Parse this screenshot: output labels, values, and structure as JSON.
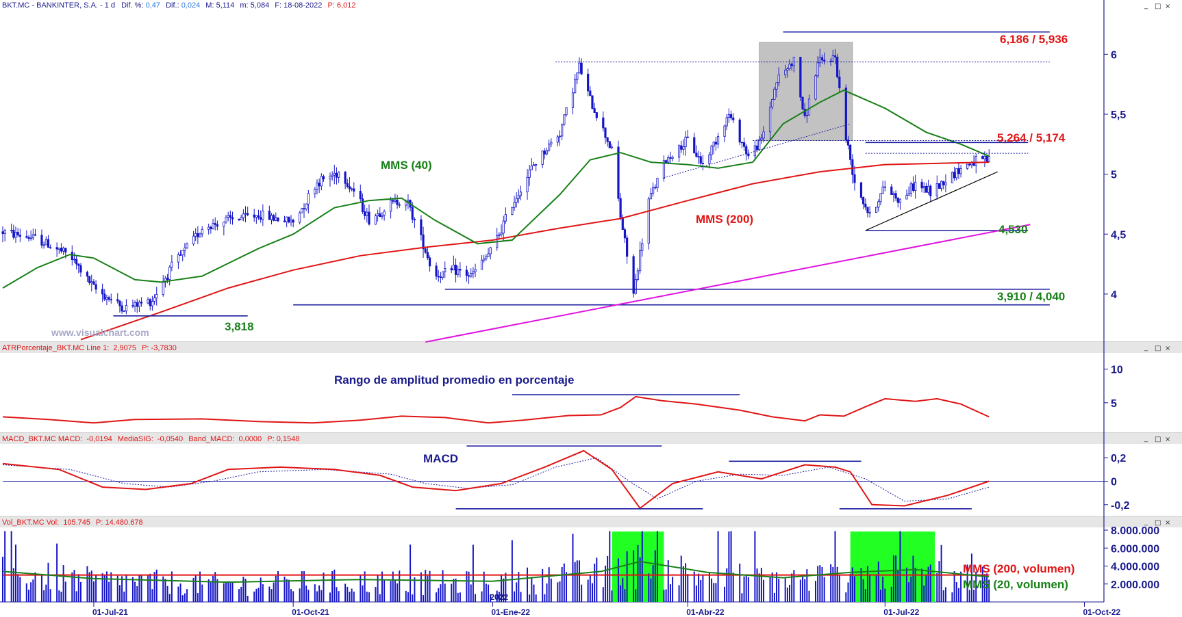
{
  "colors": {
    "candle": "#1515c8",
    "mms200": "#e01515",
    "mms40": "#188018",
    "support": "#1a1a9e",
    "pink": "#e015e0",
    "axis": "#1a1a8c",
    "highlight": "#22ff22",
    "gray_box": "#b8b8b8"
  },
  "window_buttons": [
    "_",
    "□",
    "×"
  ],
  "watermark": "www.visualchart.com",
  "chart_data": [
    {
      "id": "price",
      "type": "candlestick",
      "header": {
        "symbol": "BKT.MC - BANKINTER, S.A. -  1 d",
        "dif_pct_label": "Dif. %:",
        "dif_pct": "0,47",
        "dif_label": "Dif.:",
        "dif": "0,024",
        "max_label": "M:",
        "max": "5,114",
        "min_label": "m:",
        "min": "5,084",
        "date_label": "F:",
        "date": "18-08-2022",
        "p_label": "P:",
        "p": "6,012"
      },
      "y_ticks": [
        "4",
        "4,5",
        "5",
        "5,5",
        "6"
      ],
      "ylim": [
        3.6,
        6.35
      ],
      "x_ticks": [
        "01-Jul-21",
        "01-Oct-21",
        "01-Ene-22",
        "01-Abr-22",
        "01-Jul-22",
        "01-Oct-22"
      ],
      "x_extra_label": "2022",
      "annotations": {
        "mms40": "MMS (40)",
        "mms200": "MMS (200)",
        "lvl_3818": "3,818",
        "lvl_top": "6,186 /  5,936",
        "lvl_mid": "5,264 / 5,174",
        "lvl_4530": "4,530",
        "lvl_low": "3,910 / 4,040"
      },
      "price_path": [
        [
          "2021-05-20",
          4.52
        ],
        [
          "2021-06-05",
          4.46
        ],
        [
          "2021-06-20",
          4.32
        ],
        [
          "2021-07-01",
          4.05
        ],
        [
          "2021-07-15",
          3.88
        ],
        [
          "2021-07-28",
          3.95
        ],
        [
          "2021-08-05",
          4.2
        ],
        [
          "2021-08-20",
          4.55
        ],
        [
          "2021-09-01",
          4.62
        ],
        [
          "2021-09-15",
          4.66
        ],
        [
          "2021-10-01",
          4.6
        ],
        [
          "2021-10-12",
          4.93
        ],
        [
          "2021-10-22",
          5.02
        ],
        [
          "2021-10-29",
          4.86
        ],
        [
          "2021-11-05",
          4.62
        ],
        [
          "2021-11-15",
          4.75
        ],
        [
          "2021-11-22",
          4.8
        ],
        [
          "2021-11-30",
          4.42
        ],
        [
          "2021-12-05",
          4.15
        ],
        [
          "2021-12-15",
          4.2
        ],
        [
          "2021-12-22",
          4.15
        ],
        [
          "2022-01-01",
          4.38
        ],
        [
          "2022-01-10",
          4.75
        ],
        [
          "2022-01-20",
          5.08
        ],
        [
          "2022-02-01",
          5.35
        ],
        [
          "2022-02-10",
          5.9
        ],
        [
          "2022-02-15",
          5.62
        ],
        [
          "2022-02-25",
          5.2
        ],
        [
          "2022-03-01",
          4.65
        ],
        [
          "2022-03-07",
          4.0
        ],
        [
          "2022-03-14",
          4.78
        ],
        [
          "2022-03-22",
          5.12
        ],
        [
          "2022-04-01",
          5.28
        ],
        [
          "2022-04-08",
          5.08
        ],
        [
          "2022-04-20",
          5.5
        ],
        [
          "2022-04-29",
          5.15
        ],
        [
          "2022-05-05",
          5.28
        ],
        [
          "2022-05-12",
          5.78
        ],
        [
          "2022-05-20",
          5.95
        ],
        [
          "2022-05-25",
          5.45
        ],
        [
          "2022-05-31",
          5.92
        ],
        [
          "2022-06-08",
          5.98
        ],
        [
          "2022-06-13",
          5.3
        ],
        [
          "2022-06-17",
          4.95
        ],
        [
          "2022-06-24",
          4.65
        ],
        [
          "2022-07-01",
          4.9
        ],
        [
          "2022-07-08",
          4.78
        ],
        [
          "2022-07-15",
          4.92
        ],
        [
          "2022-07-22",
          4.85
        ],
        [
          "2022-08-01",
          5.0
        ],
        [
          "2022-08-10",
          5.1
        ],
        [
          "2022-08-18",
          5.114
        ]
      ],
      "mms200_path": [
        [
          "2021-06-25",
          3.62
        ],
        [
          "2021-08-01",
          3.85
        ],
        [
          "2021-09-01",
          4.05
        ],
        [
          "2021-10-01",
          4.2
        ],
        [
          "2021-11-01",
          4.32
        ],
        [
          "2021-12-01",
          4.39
        ],
        [
          "2022-01-01",
          4.45
        ],
        [
          "2022-02-01",
          4.55
        ],
        [
          "2022-03-01",
          4.63
        ],
        [
          "2022-04-01",
          4.78
        ],
        [
          "2022-05-01",
          4.92
        ],
        [
          "2022-06-01",
          5.02
        ],
        [
          "2022-07-01",
          5.08
        ],
        [
          "2022-08-18",
          5.1
        ]
      ],
      "mms40_path": [
        [
          "2021-05-20",
          4.05
        ],
        [
          "2021-06-05",
          4.22
        ],
        [
          "2021-06-20",
          4.33
        ],
        [
          "2021-07-01",
          4.3
        ],
        [
          "2021-07-20",
          4.12
        ],
        [
          "2021-08-01",
          4.1
        ],
        [
          "2021-08-20",
          4.15
        ],
        [
          "2021-09-15",
          4.38
        ],
        [
          "2021-10-01",
          4.5
        ],
        [
          "2021-10-20",
          4.72
        ],
        [
          "2021-11-05",
          4.78
        ],
        [
          "2021-11-20",
          4.8
        ],
        [
          "2021-12-05",
          4.62
        ],
        [
          "2021-12-25",
          4.42
        ],
        [
          "2022-01-10",
          4.45
        ],
        [
          "2022-02-01",
          4.83
        ],
        [
          "2022-02-15",
          5.12
        ],
        [
          "2022-03-01",
          5.18
        ],
        [
          "2022-03-15",
          5.1
        ],
        [
          "2022-04-01",
          5.08
        ],
        [
          "2022-04-15",
          5.05
        ],
        [
          "2022-05-01",
          5.1
        ],
        [
          "2022-05-15",
          5.42
        ],
        [
          "2022-06-01",
          5.6
        ],
        [
          "2022-06-12",
          5.7
        ],
        [
          "2022-07-01",
          5.55
        ],
        [
          "2022-07-20",
          5.35
        ],
        [
          "2022-08-05",
          5.25
        ],
        [
          "2022-08-18",
          5.15
        ]
      ],
      "levels": [
        {
          "from": "2021-07-10",
          "to": "2021-09-10",
          "y": 3.818
        },
        {
          "from": "2021-10-01",
          "to": "2022-09-15",
          "y": 3.91
        },
        {
          "from": "2021-12-10",
          "to": "2022-09-15",
          "y": 4.04
        },
        {
          "from": "2022-05-15",
          "to": "2022-09-15",
          "y": 6.186
        },
        {
          "from": "2022-06-22",
          "to": "2022-09-05",
          "y": 5.264
        },
        {
          "from": "2022-06-22",
          "to": "2022-09-05",
          "y": 4.53
        }
      ],
      "dotted_levels": [
        {
          "from": "2022-01-30",
          "to": "2022-09-15",
          "y": 5.936
        },
        {
          "from": "2022-05-01",
          "to": "2022-09-05",
          "y": 5.28
        },
        {
          "from": "2022-06-22",
          "to": "2022-09-05",
          "y": 5.174
        }
      ],
      "dotted_lines": [
        {
          "from": [
            "2022-03-21",
            4.97
          ],
          "to": [
            "2022-06-15",
            5.42
          ]
        }
      ],
      "trendlines": [
        {
          "from": [
            "2022-06-22",
            4.53
          ],
          "to": [
            "2022-08-22",
            5.02
          ],
          "color": "black"
        },
        {
          "from": [
            "2021-12-01",
            3.6
          ],
          "to": [
            "2022-09-06",
            4.58
          ],
          "color": "pink"
        }
      ],
      "gray_box": {
        "from": "2022-05-04",
        "to": "2022-06-16",
        "ylim": [
          5.28,
          6.1
        ]
      }
    },
    {
      "id": "atr",
      "type": "line",
      "header": {
        "label": "ATRPorcentaje_BKT.MC  Line 1:",
        "value": "2,9075",
        "p_label": "P:",
        "p": "-3,7830"
      },
      "title": "Rango de amplitud promedio en porcentaje",
      "y_ticks": [
        "5",
        "10"
      ],
      "ylim": [
        0.5,
        12
      ],
      "series": [
        {
          "values": [
            [
              "2021-05-20",
              2.9
            ],
            [
              "2021-06-10",
              2.5
            ],
            [
              "2021-07-01",
              2.0
            ],
            [
              "2021-07-20",
              2.5
            ],
            [
              "2021-08-20",
              2.6
            ],
            [
              "2021-09-15",
              2.2
            ],
            [
              "2021-10-10",
              2.0
            ],
            [
              "2021-11-01",
              2.4
            ],
            [
              "2021-11-20",
              3.0
            ],
            [
              "2021-12-10",
              2.8
            ],
            [
              "2021-12-30",
              2.0
            ],
            [
              "2022-01-15",
              2.4
            ],
            [
              "2022-02-05",
              3.1
            ],
            [
              "2022-02-20",
              3.2
            ],
            [
              "2022-03-01",
              4.3
            ],
            [
              "2022-03-08",
              5.9
            ],
            [
              "2022-03-20",
              5.3
            ],
            [
              "2022-04-05",
              4.8
            ],
            [
              "2022-04-25",
              3.9
            ],
            [
              "2022-05-10",
              2.9
            ],
            [
              "2022-05-25",
              2.3
            ],
            [
              "2022-06-01",
              3.2
            ],
            [
              "2022-06-12",
              3.0
            ],
            [
              "2022-06-22",
              4.4
            ],
            [
              "2022-07-01",
              5.6
            ],
            [
              "2022-07-15",
              5.2
            ],
            [
              "2022-07-25",
              5.6
            ],
            [
              "2022-08-05",
              4.8
            ],
            [
              "2022-08-18",
              2.9
            ]
          ]
        }
      ],
      "lines": [
        {
          "from": "2022-01-10",
          "to": "2022-04-25",
          "y": 6.2
        }
      ]
    },
    {
      "id": "macd",
      "type": "line",
      "header": {
        "label": "MACD_BKT.MC  MACD:",
        "macd": "-0,0194",
        "sig_label": "MediaSIG:",
        "sig": "-0,0540",
        "band_label": "Band_MACD:",
        "band": "0,0000",
        "p_label": "P:",
        "p": "0,1548"
      },
      "title": "MACD",
      "y_ticks": [
        "-0,2",
        "0",
        "0,2"
      ],
      "ylim": [
        -0.3,
        0.3
      ],
      "series": [
        {
          "values": [
            [
              "2021-05-20",
              0.15
            ],
            [
              "2021-06-15",
              0.1
            ],
            [
              "2021-07-05",
              -0.05
            ],
            [
              "2021-07-25",
              -0.07
            ],
            [
              "2021-08-15",
              -0.02
            ],
            [
              "2021-09-01",
              0.1
            ],
            [
              "2021-09-25",
              0.12
            ],
            [
              "2021-10-20",
              0.1
            ],
            [
              "2021-11-10",
              0.05
            ],
            [
              "2021-11-25",
              -0.05
            ],
            [
              "2021-12-15",
              -0.08
            ],
            [
              "2022-01-05",
              -0.02
            ],
            [
              "2022-01-25",
              0.12
            ],
            [
              "2022-02-12",
              0.26
            ],
            [
              "2022-02-25",
              0.1
            ],
            [
              "2022-03-10",
              -0.23
            ],
            [
              "2022-03-25",
              -0.02
            ],
            [
              "2022-04-15",
              0.08
            ],
            [
              "2022-05-05",
              0.02
            ],
            [
              "2022-05-25",
              0.14
            ],
            [
              "2022-06-08",
              0.12
            ],
            [
              "2022-06-15",
              0.08
            ],
            [
              "2022-06-25",
              -0.2
            ],
            [
              "2022-07-10",
              -0.21
            ],
            [
              "2022-07-30",
              -0.12
            ],
            [
              "2022-08-18",
              0.0
            ]
          ]
        },
        {
          "values": [
            [
              "2021-05-20",
              0.14
            ],
            [
              "2021-06-20",
              0.1
            ],
            [
              "2021-07-15",
              -0.02
            ],
            [
              "2021-08-05",
              -0.05
            ],
            [
              "2021-08-25",
              0.0
            ],
            [
              "2021-09-15",
              0.08
            ],
            [
              "2021-10-15",
              0.1
            ],
            [
              "2021-11-15",
              0.06
            ],
            [
              "2021-12-01",
              -0.02
            ],
            [
              "2021-12-20",
              -0.06
            ],
            [
              "2022-01-10",
              -0.03
            ],
            [
              "2022-01-30",
              0.12
            ],
            [
              "2022-02-18",
              0.2
            ],
            [
              "2022-03-05",
              0.0
            ],
            [
              "2022-03-18",
              -0.15
            ],
            [
              "2022-04-05",
              0.0
            ],
            [
              "2022-04-25",
              0.06
            ],
            [
              "2022-05-15",
              0.05
            ],
            [
              "2022-06-05",
              0.12
            ],
            [
              "2022-06-22",
              0.02
            ],
            [
              "2022-07-10",
              -0.17
            ],
            [
              "2022-07-30",
              -0.15
            ],
            [
              "2022-08-18",
              -0.05
            ]
          ]
        }
      ],
      "lines": [
        {
          "from": "2021-12-20",
          "to": "2022-03-20",
          "y": 0.3
        },
        {
          "from": "2021-12-15",
          "to": "2022-04-08",
          "y": -0.235
        },
        {
          "from": "2022-04-20",
          "to": "2022-06-20",
          "y": 0.17
        },
        {
          "from": "2022-06-10",
          "to": "2022-08-10",
          "y": -0.235
        }
      ]
    },
    {
      "id": "volume",
      "type": "bar",
      "header": {
        "label": "Vol_BKT.MC  Vol:",
        "vol": "105.745",
        "p_label": "P:",
        "p": "14.480.678"
      },
      "y_ticks": [
        "2.000.000",
        "4.000.000",
        "6.000.000",
        "8.000.000"
      ],
      "ylim": [
        0,
        8000000
      ],
      "avg200_label": "MMS (200, volumen)",
      "avg20_label": "MMS (20, volumen)",
      "mms200_level": 3000000,
      "mms20_path": [
        [
          "2021-05-20",
          3400000
        ],
        [
          "2021-07-01",
          2600000
        ],
        [
          "2021-09-01",
          2200000
        ],
        [
          "2021-11-01",
          2500000
        ],
        [
          "2022-01-01",
          2300000
        ],
        [
          "2022-02-20",
          3400000
        ],
        [
          "2022-03-10",
          4500000
        ],
        [
          "2022-04-10",
          3300000
        ],
        [
          "2022-05-15",
          2700000
        ],
        [
          "2022-06-15",
          3300000
        ],
        [
          "2022-07-15",
          3600000
        ],
        [
          "2022-08-18",
          2800000
        ]
      ],
      "highlights": [
        {
          "from": "2022-02-25",
          "to": "2022-03-21"
        },
        {
          "from": "2022-06-15",
          "to": "2022-07-24"
        }
      ]
    }
  ]
}
